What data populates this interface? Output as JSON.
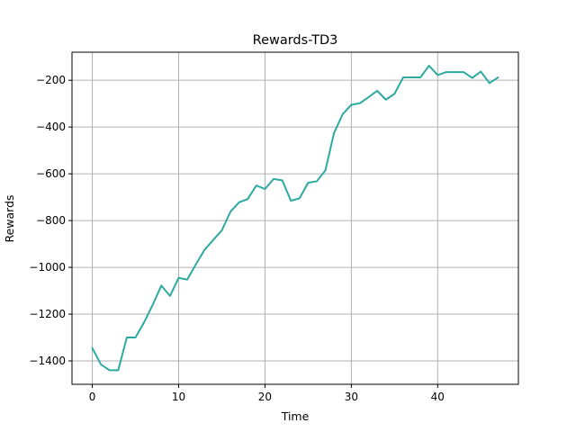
{
  "chart_data": {
    "type": "line",
    "title": "Rewards-TD3",
    "xlabel": "Time",
    "ylabel": "Rewards",
    "xlim": [
      -2.35,
      49.35
    ],
    "ylim": [
      -1500,
      -80
    ],
    "x_ticks": [
      0,
      10,
      20,
      30,
      40
    ],
    "y_ticks": [
      -1400,
      -1200,
      -1000,
      -800,
      -600,
      -400,
      -200
    ],
    "x_tick_labels": [
      "0",
      "10",
      "20",
      "30",
      "40"
    ],
    "y_tick_labels": [
      "−1400",
      "−1200",
      "−1000",
      "−800",
      "−600",
      "−400",
      "−200"
    ],
    "grid": true,
    "series": [
      {
        "color": "#2ca9a0",
        "x": [
          0,
          1,
          2,
          3,
          4,
          5,
          6,
          7,
          8,
          9,
          10,
          11,
          12,
          13,
          14,
          15,
          16,
          17,
          18,
          19,
          20,
          21,
          22,
          23,
          24,
          25,
          26,
          27,
          28,
          29,
          30,
          31,
          32,
          33,
          34,
          35,
          36,
          37,
          38,
          39,
          40,
          41,
          42,
          43,
          44,
          45,
          46,
          47
        ],
        "values": [
          -1345,
          -1415,
          -1440,
          -1440,
          -1300,
          -1300,
          -1235,
          -1160,
          -1078,
          -1122,
          -1045,
          -1052,
          -987,
          -925,
          -883,
          -842,
          -762,
          -722,
          -708,
          -650,
          -665,
          -622,
          -628,
          -715,
          -705,
          -638,
          -632,
          -585,
          -425,
          -345,
          -305,
          -298,
          -272,
          -245,
          -283,
          -258,
          -188,
          -188,
          -188,
          -138,
          -178,
          -165,
          -165,
          -165,
          -190,
          -163,
          -212,
          -188
        ]
      }
    ]
  }
}
